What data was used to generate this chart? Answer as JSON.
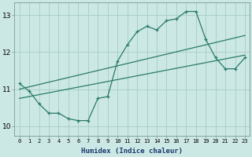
{
  "xlabel": "Humidex (Indice chaleur)",
  "xlim": [
    -0.5,
    23.5
  ],
  "ylim": [
    9.75,
    13.35
  ],
  "xticks": [
    0,
    1,
    2,
    3,
    4,
    5,
    6,
    7,
    8,
    9,
    10,
    11,
    12,
    13,
    14,
    15,
    16,
    17,
    18,
    19,
    20,
    21,
    22,
    23
  ],
  "yticks": [
    10,
    11,
    12,
    13
  ],
  "bg_color": "#cce8e4",
  "grid_color": "#aacfcb",
  "line_color": "#2a7a6a",
  "series1_x": [
    0,
    1,
    2,
    3,
    4,
    5,
    6,
    7,
    8,
    9,
    10,
    11,
    12,
    13,
    14,
    15,
    16,
    17,
    18,
    19,
    20,
    21,
    22,
    23
  ],
  "series1_y": [
    11.15,
    10.95,
    10.6,
    10.35,
    10.35,
    10.2,
    10.15,
    10.15,
    10.75,
    10.8,
    11.75,
    12.2,
    12.55,
    12.7,
    12.6,
    12.85,
    12.9,
    13.1,
    13.1,
    12.35,
    11.85,
    11.55,
    11.55,
    11.85
  ],
  "series2_x": [
    0,
    23
  ],
  "series2_y": [
    11.0,
    12.45
  ],
  "series3_x": [
    0,
    23
  ],
  "series3_y": [
    10.75,
    11.92
  ]
}
